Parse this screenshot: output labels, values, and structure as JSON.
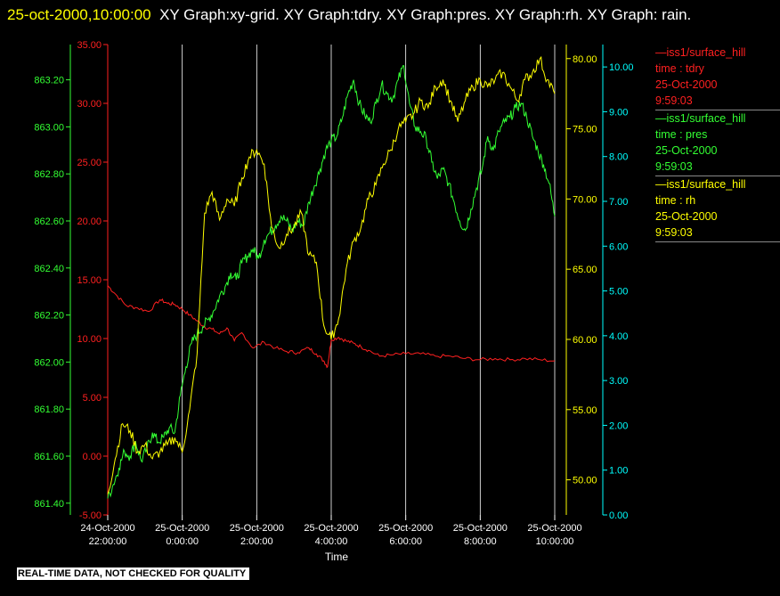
{
  "header": {
    "timestamp": "25-oct-2000,10:00:00",
    "titles": "XY Graph:xy-grid.  XY Graph:tdry.  XY Graph:pres.  XY Graph:rh.  XY Graph: rain."
  },
  "colors": {
    "tdry": "#ff2020",
    "pres": "#33ff33",
    "rh": "#ffff00",
    "rain": "#00ffff",
    "grid": "#ffffff",
    "axis_label": "#ffffff"
  },
  "legend": [
    {
      "name": "—iss1/surface_hill",
      "field": "time : tdry",
      "date": "25-Oct-2000",
      "time": "9:59:03",
      "color": "#ff2020"
    },
    {
      "name": "—iss1/surface_hill",
      "field": "time : pres",
      "date": "25-Oct-2000",
      "time": "9:59:03",
      "color": "#33ff33"
    },
    {
      "name": "—iss1/surface_hill",
      "field": "time : rh",
      "date": "25-Oct-2000",
      "time": "9:59:03",
      "color": "#ffff00"
    }
  ],
  "note": "REAL-TIME DATA, NOT CHECKED FOR QUALITY",
  "chart_data": {
    "type": "line",
    "xlabel": "Time",
    "x_range": [
      "24-Oct-2000 21:00",
      "25-Oct-2000 10:00"
    ],
    "x_ticks": [
      {
        "date": "24-Oct-2000",
        "time": "22:00:00",
        "hour": 22
      },
      {
        "date": "25-Oct-2000",
        "time": "0:00:00",
        "hour": 24
      },
      {
        "date": "25-Oct-2000",
        "time": "2:00:00",
        "hour": 26
      },
      {
        "date": "25-Oct-2000",
        "time": "4:00:00",
        "hour": 28
      },
      {
        "date": "25-Oct-2000",
        "time": "6:00:00",
        "hour": 30
      },
      {
        "date": "25-Oct-2000",
        "time": "8:00:00",
        "hour": 32
      },
      {
        "date": "25-Oct-2000",
        "time": "10:00:00",
        "hour": 34
      }
    ],
    "grid": "vertical",
    "axes": {
      "tdry": {
        "ylim": [
          -5,
          35
        ],
        "ticks": [
          "-5.00",
          "0.00",
          "5.00",
          "10.00",
          "15.00",
          "20.00",
          "25.00",
          "30.00",
          "35.00"
        ]
      },
      "pres": {
        "ylim": [
          861.35,
          863.35
        ],
        "ticks": [
          "861.40",
          "861.60",
          "861.80",
          "862.00",
          "862.20",
          "862.40",
          "862.60",
          "862.80",
          "863.00",
          "863.20"
        ]
      },
      "rh": {
        "ylim": [
          47.5,
          81
        ],
        "ticks": [
          "50.00",
          "55.00",
          "60.00",
          "65.00",
          "70.00",
          "75.00",
          "80.00"
        ]
      },
      "rain": {
        "ylim": [
          0,
          10.5
        ],
        "ticks": [
          "0.00",
          "1.00",
          "2.00",
          "3.00",
          "4.00",
          "5.00",
          "6.00",
          "7.00",
          "8.00",
          "9.00",
          "10.00"
        ]
      }
    },
    "series": [
      {
        "key": "tdry",
        "x": [
          22.0,
          22.2,
          22.5,
          22.8,
          23.1,
          23.4,
          23.6,
          23.8,
          24.0,
          24.2,
          24.4,
          24.6,
          24.8,
          25.0,
          25.2,
          25.4,
          25.6,
          25.9,
          26.2,
          26.5,
          26.8,
          27.1,
          27.4,
          27.6,
          27.8,
          27.9,
          28.0,
          28.2,
          28.4,
          28.6,
          28.8,
          29.0,
          29.3,
          29.6,
          30.0,
          30.4,
          30.8,
          31.2,
          31.6,
          32.0,
          32.4,
          32.8,
          33.2,
          33.6,
          34.0
        ],
        "values": [
          14.5,
          13.8,
          12.8,
          12.6,
          12.3,
          13.3,
          13.0,
          12.9,
          12.5,
          12.0,
          11.5,
          11.0,
          10.8,
          10.4,
          10.9,
          9.8,
          10.5,
          9.2,
          9.7,
          9.2,
          8.9,
          8.8,
          9.2,
          8.7,
          8.1,
          7.6,
          9.9,
          10.1,
          9.8,
          9.6,
          9.3,
          9.0,
          8.5,
          8.6,
          8.7,
          8.7,
          8.5,
          8.5,
          8.3,
          8.2,
          8.3,
          8.2,
          8.3,
          8.2,
          8.1
        ]
      },
      {
        "key": "pres",
        "x": [
          22.0,
          22.15,
          22.3,
          22.45,
          22.6,
          22.75,
          22.9,
          23.05,
          23.2,
          23.35,
          23.5,
          23.65,
          23.8,
          23.95,
          24.1,
          24.25,
          24.4,
          24.55,
          24.7,
          24.85,
          25.0,
          25.15,
          25.3,
          25.45,
          25.6,
          25.75,
          25.9,
          26.05,
          26.2,
          26.35,
          26.5,
          26.65,
          26.8,
          26.95,
          27.1,
          27.25,
          27.4,
          27.55,
          27.7,
          27.85,
          28.0,
          28.15,
          28.3,
          28.45,
          28.6,
          28.75,
          28.9,
          29.05,
          29.2,
          29.35,
          29.5,
          29.65,
          29.8,
          29.95,
          30.1,
          30.25,
          30.4,
          30.55,
          30.7,
          30.85,
          31.0,
          31.15,
          31.3,
          31.45,
          31.6,
          31.75,
          31.9,
          32.05,
          32.2,
          32.35,
          32.5,
          32.65,
          32.8,
          32.95,
          33.1,
          33.25,
          33.4,
          33.55,
          33.7,
          33.85,
          34.0
        ],
        "values": [
          861.42,
          861.48,
          861.55,
          861.62,
          861.6,
          861.66,
          861.58,
          861.63,
          861.7,
          861.66,
          861.68,
          861.72,
          861.7,
          861.86,
          861.98,
          862.08,
          862.12,
          862.15,
          862.18,
          862.22,
          862.28,
          862.32,
          862.38,
          862.35,
          862.42,
          862.45,
          862.48,
          862.44,
          862.52,
          862.55,
          862.58,
          862.62,
          862.6,
          862.56,
          862.6,
          862.58,
          862.68,
          862.75,
          862.82,
          862.9,
          862.94,
          862.96,
          863.04,
          863.14,
          863.2,
          863.1,
          863.05,
          863.02,
          863.1,
          863.18,
          863.14,
          863.12,
          863.2,
          863.26,
          863.1,
          863.0,
          862.98,
          862.95,
          862.85,
          862.78,
          862.82,
          862.76,
          862.68,
          862.6,
          862.56,
          862.65,
          862.74,
          862.82,
          862.96,
          862.9,
          862.98,
          863.02,
          863.04,
          863.08,
          863.1,
          863.04,
          862.96,
          862.9,
          862.84,
          862.76,
          862.62
        ]
      },
      {
        "key": "rh",
        "x": [
          22.0,
          22.2,
          22.4,
          22.6,
          22.8,
          23.0,
          23.2,
          23.4,
          23.6,
          23.8,
          24.0,
          24.2,
          24.4,
          24.6,
          24.8,
          25.0,
          25.2,
          25.4,
          25.6,
          25.8,
          26.0,
          26.2,
          26.4,
          26.6,
          26.8,
          27.0,
          27.2,
          27.4,
          27.6,
          27.8,
          28.0,
          28.2,
          28.4,
          28.6,
          28.8,
          29.0,
          29.2,
          29.4,
          29.6,
          29.8,
          30.0,
          30.2,
          30.4,
          30.6,
          30.8,
          31.0,
          31.2,
          31.4,
          31.6,
          31.8,
          32.0,
          32.2,
          32.4,
          32.6,
          32.8,
          33.0,
          33.2,
          33.4,
          33.6,
          33.8,
          34.0
        ],
        "values": [
          49.0,
          51.5,
          54.0,
          53.5,
          52.0,
          52.5,
          51.5,
          52.0,
          52.5,
          53.0,
          52.0,
          55.0,
          59.0,
          69.0,
          70.5,
          68.5,
          70.0,
          69.5,
          71.5,
          73.0,
          73.5,
          72.5,
          68.0,
          66.5,
          67.5,
          68.0,
          69.0,
          66.0,
          65.5,
          61.0,
          60.0,
          61.5,
          65.0,
          67.0,
          68.0,
          70.0,
          71.0,
          72.5,
          73.5,
          75.0,
          75.5,
          76.0,
          77.0,
          76.5,
          78.0,
          78.5,
          77.0,
          75.5,
          77.0,
          78.0,
          78.5,
          78.0,
          78.5,
          79.0,
          78.0,
          77.0,
          78.5,
          79.0,
          80.0,
          78.5,
          77.5
        ]
      }
    ]
  }
}
